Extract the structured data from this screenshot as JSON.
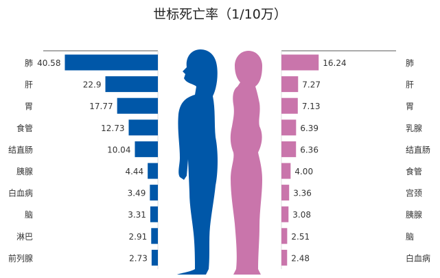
{
  "chart_data": [
    {
      "type": "bar",
      "orientation": "horizontal",
      "direction": "leftward",
      "series_color": "#0057a8",
      "categories": [
        "肺",
        "肝",
        "胃",
        "食管",
        "结直肠",
        "胰腺",
        "白血病",
        "脑",
        "淋巴",
        "前列腺"
      ],
      "values": [
        40.58,
        22.9,
        17.77,
        12.73,
        10.04,
        4.44,
        3.49,
        3.31,
        2.91,
        2.73
      ],
      "value_labels": [
        "40.58",
        "22.9",
        "17.77",
        "12.73",
        "10.04",
        "4.44",
        "3.49",
        "3.31",
        "2.91",
        "2.73"
      ],
      "xlim": [
        0,
        50
      ],
      "grid": false
    },
    {
      "type": "bar",
      "orientation": "horizontal",
      "direction": "rightward",
      "series_color": "#c975ab",
      "categories": [
        "肺",
        "肝",
        "胃",
        "乳腺",
        "结直肠",
        "食管",
        "宫颈",
        "胰腺",
        "脑",
        "白血病"
      ],
      "values": [
        16.24,
        7.27,
        7.13,
        6.39,
        6.36,
        4.0,
        3.36,
        3.08,
        2.51,
        2.48
      ],
      "value_labels": [
        "16.24",
        "7.27",
        "7.13",
        "6.39",
        "6.36",
        "4.00",
        "3.36",
        "3.08",
        "2.51",
        "2.48"
      ],
      "xlim": [
        0,
        50
      ],
      "grid": false
    }
  ],
  "title": "世标死亡率（1/10万）",
  "icons": {
    "male": "male-silhouette-icon",
    "female": "female-silhouette-icon"
  },
  "colors": {
    "male": "#0057a8",
    "female": "#c975ab"
  }
}
